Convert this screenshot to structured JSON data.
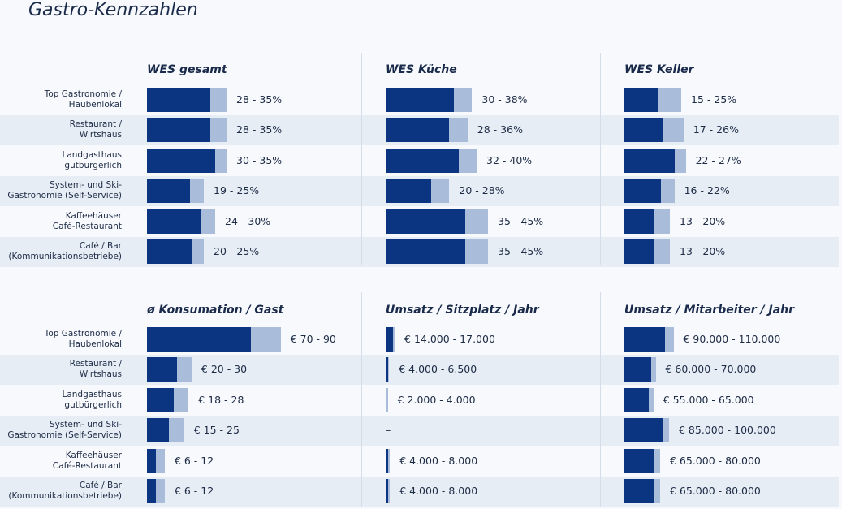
{
  "title": "Gastro-Kennzahlen",
  "chart_data": [
    {
      "type": "range-bar",
      "title": "WES gesamt",
      "categories": [
        "Top Gastronomie /\nHaubenlokal",
        "Restaurant /\nWirtshaus",
        "Landgasthaus\ngutbürgerlich",
        "System- und Ski-\nGastronomie (Self-Service)",
        "Kaffeehäuser\nCafé-Restaurant",
        "Café / Bar\n(Kommunikationsbetriebe)"
      ],
      "low": [
        28,
        28,
        30,
        19,
        24,
        20
      ],
      "high": [
        35,
        35,
        35,
        25,
        30,
        25
      ],
      "value_labels": [
        "28 - 35%",
        "28 - 35%",
        "30 - 35%",
        "19 - 25%",
        "24 - 30%",
        "20 - 25%"
      ],
      "colors": [
        "#0b3580",
        "#a9bcd9"
      ]
    },
    {
      "type": "range-bar",
      "title": "WES Küche",
      "low": [
        30,
        28,
        32,
        20,
        35,
        35
      ],
      "high": [
        38,
        36,
        40,
        28,
        45,
        45
      ],
      "value_labels": [
        "30 - 38%",
        "28 - 36%",
        "32 - 40%",
        "20 - 28%",
        "35 - 45%",
        "35 - 45%"
      ],
      "colors": [
        "#0b3580",
        "#a9bcd9"
      ]
    },
    {
      "type": "range-bar",
      "title": "WES Keller",
      "low": [
        15,
        17,
        22,
        16,
        13,
        13
      ],
      "high": [
        25,
        26,
        27,
        22,
        20,
        20
      ],
      "value_labels": [
        "15 - 25%",
        "17 - 26%",
        "22 - 27%",
        "16 - 22%",
        "13 - 20%",
        "13 - 20%"
      ],
      "colors": [
        "#0b3580",
        "#a9bcd9"
      ]
    },
    {
      "type": "range-bar",
      "title": "ø Konsumation / Gast",
      "categories": [
        "Top Gastronomie /\nHaubenlokal",
        "Restaurant /\nWirtshaus",
        "Landgasthaus\ngutbürgerlich",
        "System- und Ski-\nGastronomie (Self-Service)",
        "Kaffeehäuser\nCafé-Restaurant",
        "Café / Bar\n(Kommunikationsbetriebe)"
      ],
      "low": [
        70,
        20,
        18,
        15,
        6,
        6
      ],
      "high": [
        90,
        30,
        28,
        25,
        12,
        12
      ],
      "value_labels": [
        "€ 70 - 90",
        "€ 20 - 30",
        "€ 18 - 28",
        "€ 15 - 25",
        "€ 6 - 12",
        "€ 6 - 12"
      ],
      "colors": [
        "#0b3580",
        "#a9bcd9"
      ]
    },
    {
      "type": "range-bar",
      "title": "Umsatz / Sitzplatz / Jahr",
      "low": [
        14000,
        4000,
        2000,
        null,
        4000,
        4000
      ],
      "high": [
        17000,
        6500,
        4000,
        null,
        8000,
        8000
      ],
      "value_labels": [
        "€ 14.000 - 17.000",
        "€ 4.000 - 6.500",
        "€ 2.000 - 4.000",
        "–",
        "€ 4.000 - 8.000",
        "€ 4.000 - 8.000"
      ],
      "colors": [
        "#0b3580",
        "#a9bcd9"
      ]
    },
    {
      "type": "range-bar",
      "title": "Umsatz / Mitarbeiter / Jahr",
      "low": [
        90000,
        60000,
        55000,
        85000,
        65000,
        65000
      ],
      "high": [
        110000,
        70000,
        65000,
        100000,
        80000,
        80000
      ],
      "value_labels": [
        "€ 90.000 - 110.000",
        "€ 60.000 - 70.000",
        "€ 55.000 - 65.000",
        "€ 85.000 - 100.000",
        "€ 65.000 - 80.000",
        "€ 65.000 - 80.000"
      ],
      "colors": [
        "#0b3580",
        "#a9bcd9"
      ]
    }
  ]
}
